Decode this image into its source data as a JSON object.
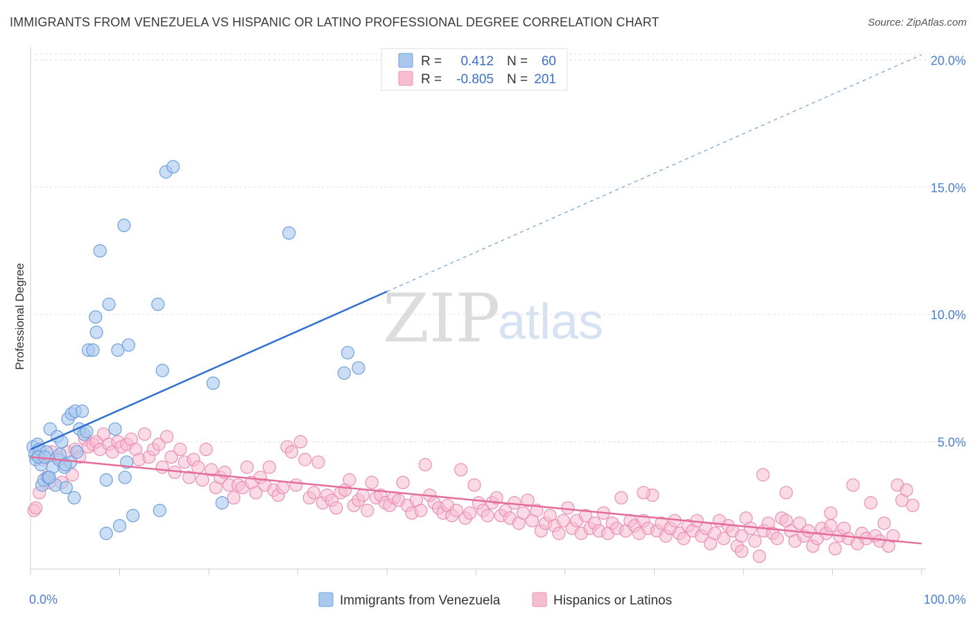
{
  "title": "IMMIGRANTS FROM VENEZUELA VS HISPANIC OR LATINO PROFESSIONAL DEGREE CORRELATION CHART",
  "source": "Source: ZipAtlas.com",
  "watermark": {
    "zip": "ZIP",
    "atlas": "atlas"
  },
  "colors": {
    "blue_fill": "#aac8ee",
    "blue_stroke": "#6e9fdc",
    "blue_line": "#2f6fd0",
    "pink_fill": "#f6bcd0",
    "pink_stroke": "#eb8fb2",
    "pink_line": "#e36c99",
    "grid": "#dddddd",
    "tick_label": "#4a7fd1"
  },
  "legend": {
    "r_label": "R =",
    "n_label": "N =",
    "blue": {
      "r": "0.412",
      "n": "60"
    },
    "pink": {
      "r": "-0.805",
      "n": "201"
    }
  },
  "bottom_legend": {
    "blue": "Immigrants from Venezuela",
    "pink": "Hispanics or Latinos"
  },
  "chart_data": {
    "type": "scatter",
    "title": "IMMIGRANTS FROM VENEZUELA VS HISPANIC OR LATINO PROFESSIONAL DEGREE CORRELATION CHART",
    "xlabel": "",
    "ylabel": "Professional Degree",
    "xlim": [
      0,
      100
    ],
    "ylim": [
      0,
      20.5
    ],
    "x_tick_labels": [
      "0.0%",
      "100.0%"
    ],
    "y_ticks": [
      5,
      10,
      15,
      20
    ],
    "y_tick_labels": [
      "5.0%",
      "10.0%",
      "15.0%",
      "20.0%"
    ],
    "grid": true,
    "legend_position": "top-center",
    "series": [
      {
        "name": "Immigrants from Venezuela",
        "r": 0.412,
        "n": 60,
        "trend": {
          "x0": 0,
          "y0": 4.7,
          "x1": 40,
          "y1": 10.9,
          "dash_to_x": 100
        },
        "points": [
          [
            0.3,
            4.8
          ],
          [
            0.5,
            4.5
          ],
          [
            0.6,
            4.3
          ],
          [
            0.8,
            4.9
          ],
          [
            1.0,
            4.7
          ],
          [
            1.2,
            4.1
          ],
          [
            1.3,
            3.3
          ],
          [
            1.5,
            3.5
          ],
          [
            1.8,
            4.6
          ],
          [
            2.0,
            3.6
          ],
          [
            2.2,
            5.5
          ],
          [
            2.5,
            4.0
          ],
          [
            2.8,
            3.3
          ],
          [
            3.0,
            5.2
          ],
          [
            3.2,
            4.3
          ],
          [
            3.5,
            5.0
          ],
          [
            3.8,
            4.0
          ],
          [
            4.0,
            3.2
          ],
          [
            4.2,
            5.9
          ],
          [
            4.5,
            4.2
          ],
          [
            4.6,
            6.1
          ],
          [
            5.0,
            6.2
          ],
          [
            5.2,
            4.6
          ],
          [
            5.5,
            5.5
          ],
          [
            5.8,
            6.2
          ],
          [
            6.0,
            5.3
          ],
          [
            6.5,
            8.6
          ],
          [
            7.0,
            8.6
          ],
          [
            7.3,
            9.9
          ],
          [
            7.4,
            9.3
          ],
          [
            7.8,
            12.5
          ],
          [
            8.5,
            3.5
          ],
          [
            8.8,
            10.4
          ],
          [
            9.5,
            5.5
          ],
          [
            9.8,
            8.6
          ],
          [
            10.5,
            13.5
          ],
          [
            10.6,
            3.6
          ],
          [
            10.8,
            4.2
          ],
          [
            11.0,
            8.8
          ],
          [
            11.5,
            2.1
          ],
          [
            10.0,
            1.7
          ],
          [
            8.5,
            1.4
          ],
          [
            14.3,
            10.4
          ],
          [
            14.5,
            2.3
          ],
          [
            14.8,
            7.8
          ],
          [
            15.2,
            15.6
          ],
          [
            16.0,
            15.8
          ],
          [
            20.5,
            7.3
          ],
          [
            21.5,
            2.6
          ],
          [
            29.0,
            13.2
          ],
          [
            35.2,
            7.7
          ],
          [
            35.6,
            8.5
          ],
          [
            36.8,
            7.9
          ],
          [
            2.1,
            3.6
          ],
          [
            3.3,
            4.5
          ],
          [
            0.9,
            4.4
          ],
          [
            1.6,
            4.4
          ],
          [
            4.9,
            2.8
          ],
          [
            6.3,
            5.4
          ],
          [
            3.9,
            4.1
          ]
        ]
      },
      {
        "name": "Hispanics or Latinos",
        "r": -0.805,
        "n": 201,
        "trend": {
          "x0": 0,
          "y0": 4.4,
          "x1": 100,
          "y1": 1.0
        },
        "points": [
          [
            0.4,
            2.3
          ],
          [
            0.6,
            2.4
          ],
          [
            1.0,
            3.0
          ],
          [
            1.3,
            4.3
          ],
          [
            1.8,
            3.6
          ],
          [
            2.1,
            3.4
          ],
          [
            2.4,
            4.6
          ],
          [
            3.0,
            4.4
          ],
          [
            3.5,
            3.4
          ],
          [
            4.1,
            4.6
          ],
          [
            4.7,
            3.7
          ],
          [
            5.0,
            4.7
          ],
          [
            5.5,
            4.4
          ],
          [
            6.1,
            5.1
          ],
          [
            6.5,
            4.8
          ],
          [
            7.0,
            4.9
          ],
          [
            7.4,
            5.0
          ],
          [
            7.8,
            4.7
          ],
          [
            8.2,
            5.3
          ],
          [
            8.8,
            4.9
          ],
          [
            9.2,
            4.6
          ],
          [
            9.8,
            5.0
          ],
          [
            10.2,
            4.8
          ],
          [
            10.8,
            4.9
          ],
          [
            11.3,
            5.1
          ],
          [
            11.8,
            4.7
          ],
          [
            12.2,
            4.3
          ],
          [
            12.8,
            5.3
          ],
          [
            13.3,
            4.4
          ],
          [
            13.8,
            4.7
          ],
          [
            14.4,
            4.9
          ],
          [
            14.8,
            4.0
          ],
          [
            15.3,
            5.2
          ],
          [
            15.8,
            4.4
          ],
          [
            16.2,
            3.8
          ],
          [
            16.8,
            4.7
          ],
          [
            17.3,
            4.2
          ],
          [
            17.8,
            3.6
          ],
          [
            18.3,
            4.3
          ],
          [
            18.8,
            4.0
          ],
          [
            19.3,
            3.5
          ],
          [
            19.7,
            4.7
          ],
          [
            20.3,
            3.9
          ],
          [
            20.8,
            3.2
          ],
          [
            21.3,
            3.6
          ],
          [
            21.8,
            3.8
          ],
          [
            22.3,
            3.3
          ],
          [
            22.8,
            2.8
          ],
          [
            23.3,
            3.3
          ],
          [
            23.8,
            3.2
          ],
          [
            24.3,
            4.0
          ],
          [
            24.8,
            3.4
          ],
          [
            25.3,
            3.0
          ],
          [
            25.8,
            3.6
          ],
          [
            26.3,
            3.3
          ],
          [
            26.8,
            4.0
          ],
          [
            27.3,
            3.1
          ],
          [
            27.8,
            2.9
          ],
          [
            28.3,
            3.2
          ],
          [
            28.8,
            4.8
          ],
          [
            29.3,
            4.6
          ],
          [
            29.8,
            3.3
          ],
          [
            30.3,
            5.0
          ],
          [
            30.8,
            4.3
          ],
          [
            31.3,
            2.8
          ],
          [
            31.8,
            3.0
          ],
          [
            32.3,
            4.2
          ],
          [
            32.8,
            2.6
          ],
          [
            33.3,
            2.9
          ],
          [
            33.8,
            2.7
          ],
          [
            34.3,
            2.4
          ],
          [
            34.8,
            3.0
          ],
          [
            35.3,
            3.1
          ],
          [
            35.8,
            3.5
          ],
          [
            36.3,
            2.5
          ],
          [
            36.8,
            2.7
          ],
          [
            37.3,
            2.9
          ],
          [
            37.8,
            2.3
          ],
          [
            38.3,
            3.4
          ],
          [
            38.8,
            2.8
          ],
          [
            39.3,
            2.9
          ],
          [
            39.8,
            2.6
          ],
          [
            40.3,
            2.5
          ],
          [
            40.8,
            2.8
          ],
          [
            41.3,
            2.7
          ],
          [
            41.8,
            3.4
          ],
          [
            42.3,
            2.5
          ],
          [
            42.8,
            2.2
          ],
          [
            43.3,
            2.7
          ],
          [
            43.8,
            2.3
          ],
          [
            44.3,
            4.1
          ],
          [
            44.8,
            2.9
          ],
          [
            45.3,
            2.6
          ],
          [
            45.8,
            2.4
          ],
          [
            46.3,
            2.2
          ],
          [
            46.8,
            2.5
          ],
          [
            47.3,
            2.1
          ],
          [
            47.8,
            2.3
          ],
          [
            48.3,
            3.9
          ],
          [
            48.8,
            2.0
          ],
          [
            49.3,
            2.2
          ],
          [
            49.8,
            3.3
          ],
          [
            50.3,
            2.6
          ],
          [
            50.8,
            2.3
          ],
          [
            51.3,
            2.1
          ],
          [
            51.8,
            2.6
          ],
          [
            52.3,
            2.8
          ],
          [
            52.8,
            2.1
          ],
          [
            53.3,
            2.3
          ],
          [
            53.8,
            2.0
          ],
          [
            54.3,
            2.6
          ],
          [
            54.8,
            1.8
          ],
          [
            55.3,
            2.2
          ],
          [
            55.8,
            2.7
          ],
          [
            56.3,
            1.9
          ],
          [
            56.8,
            2.3
          ],
          [
            57.3,
            1.5
          ],
          [
            57.8,
            1.8
          ],
          [
            58.3,
            2.1
          ],
          [
            58.8,
            1.7
          ],
          [
            59.3,
            1.4
          ],
          [
            59.8,
            1.9
          ],
          [
            60.3,
            2.4
          ],
          [
            60.8,
            1.6
          ],
          [
            61.3,
            1.9
          ],
          [
            61.8,
            1.4
          ],
          [
            62.3,
            2.1
          ],
          [
            62.8,
            1.6
          ],
          [
            63.3,
            1.8
          ],
          [
            63.8,
            1.5
          ],
          [
            64.3,
            2.2
          ],
          [
            64.8,
            1.4
          ],
          [
            65.3,
            1.8
          ],
          [
            65.8,
            1.6
          ],
          [
            66.3,
            2.8
          ],
          [
            66.8,
            1.5
          ],
          [
            67.3,
            1.9
          ],
          [
            67.8,
            1.7
          ],
          [
            68.3,
            1.4
          ],
          [
            68.8,
            1.9
          ],
          [
            69.3,
            1.6
          ],
          [
            69.8,
            2.9
          ],
          [
            70.3,
            1.5
          ],
          [
            70.8,
            1.8
          ],
          [
            71.3,
            1.3
          ],
          [
            71.8,
            1.6
          ],
          [
            72.3,
            1.9
          ],
          [
            72.8,
            1.4
          ],
          [
            73.3,
            1.2
          ],
          [
            73.8,
            1.7
          ],
          [
            74.3,
            1.5
          ],
          [
            74.8,
            1.9
          ],
          [
            75.3,
            1.3
          ],
          [
            75.8,
            1.6
          ],
          [
            76.3,
            1.0
          ],
          [
            76.8,
            1.4
          ],
          [
            77.3,
            1.9
          ],
          [
            77.8,
            1.2
          ],
          [
            78.3,
            1.7
          ],
          [
            78.8,
            1.5
          ],
          [
            79.3,
            0.9
          ],
          [
            79.8,
            1.3
          ],
          [
            80.3,
            2.0
          ],
          [
            80.8,
            1.6
          ],
          [
            81.3,
            1.1
          ],
          [
            81.8,
            0.5
          ],
          [
            82.3,
            1.5
          ],
          [
            82.8,
            1.8
          ],
          [
            83.3,
            1.4
          ],
          [
            83.8,
            1.2
          ],
          [
            84.3,
            2.0
          ],
          [
            84.8,
            3.0
          ],
          [
            85.3,
            1.5
          ],
          [
            85.8,
            1.1
          ],
          [
            86.3,
            1.8
          ],
          [
            86.8,
            1.3
          ],
          [
            87.3,
            1.5
          ],
          [
            87.8,
            0.9
          ],
          [
            88.3,
            1.2
          ],
          [
            88.8,
            1.6
          ],
          [
            89.3,
            1.4
          ],
          [
            89.8,
            1.7
          ],
          [
            90.3,
            0.8
          ],
          [
            90.8,
            1.3
          ],
          [
            91.3,
            1.6
          ],
          [
            91.8,
            1.2
          ],
          [
            92.3,
            3.3
          ],
          [
            92.8,
            1.0
          ],
          [
            93.3,
            1.4
          ],
          [
            93.8,
            1.2
          ],
          [
            94.3,
            2.6
          ],
          [
            94.8,
            1.3
          ],
          [
            95.3,
            1.1
          ],
          [
            95.8,
            1.8
          ],
          [
            96.3,
            0.9
          ],
          [
            96.8,
            1.3
          ],
          [
            97.3,
            3.3
          ],
          [
            97.8,
            2.7
          ],
          [
            98.3,
            3.1
          ],
          [
            99.0,
            2.5
          ],
          [
            82.2,
            3.7
          ],
          [
            89.8,
            2.2
          ],
          [
            79.8,
            0.7
          ],
          [
            84.8,
            1.9
          ],
          [
            68.8,
            3.0
          ]
        ]
      }
    ]
  }
}
